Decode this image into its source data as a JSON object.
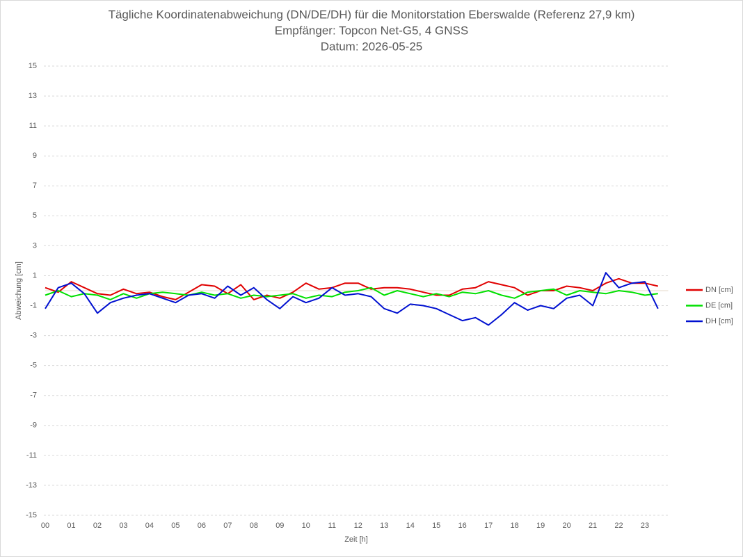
{
  "chart_data": {
    "type": "line",
    "title": "Tägliche Koordinatenabweichung (DN/DE/DH) für die Monitorstation Eberswalde (Referenz 27,9 km)",
    "subtitle": "Empfänger: Topcon Net-G5, 4 GNSS",
    "date": "Datum: 2026-05-25",
    "xlabel": "Zeit [h]",
    "ylabel": "Abweichung [cm]",
    "x": [
      0,
      0.5,
      1,
      1.5,
      2,
      2.5,
      3,
      3.5,
      4,
      4.5,
      5,
      5.5,
      6,
      6.5,
      7,
      7.5,
      8,
      8.5,
      9,
      9.5,
      10,
      10.5,
      11,
      11.5,
      12,
      12.5,
      13,
      13.5,
      14,
      14.5,
      15,
      15.5,
      16,
      16.5,
      17,
      17.5,
      18,
      18.5,
      19,
      19.5,
      20,
      20.5,
      21,
      21.5,
      22,
      22.5,
      23,
      23.5
    ],
    "series": [
      {
        "name": "DN [cm]",
        "color": "#e00000",
        "values": [
          0.2,
          -0.1,
          0.6,
          0.2,
          -0.2,
          -0.3,
          0.1,
          -0.2,
          -0.1,
          -0.4,
          -0.6,
          -0.1,
          0.4,
          0.3,
          -0.2,
          0.4,
          -0.6,
          -0.3,
          -0.5,
          -0.1,
          0.5,
          0.1,
          0.2,
          0.5,
          0.5,
          0.1,
          0.2,
          0.2,
          0.1,
          -0.1,
          -0.3,
          -0.3,
          0.1,
          0.2,
          0.6,
          0.4,
          0.2,
          -0.3,
          0,
          0,
          0.3,
          0.2,
          0,
          0.5,
          0.8,
          0.5,
          0.5,
          0.3
        ]
      },
      {
        "name": "DE [cm]",
        "color": "#00e000",
        "values": [
          -0.3,
          0,
          -0.4,
          -0.2,
          -0.3,
          -0.6,
          -0.2,
          -0.5,
          -0.2,
          -0.1,
          -0.2,
          -0.3,
          -0.1,
          -0.3,
          -0.2,
          -0.5,
          -0.3,
          -0.4,
          -0.3,
          -0.2,
          -0.5,
          -0.3,
          -0.4,
          -0.1,
          0,
          0.2,
          -0.3,
          0,
          -0.2,
          -0.4,
          -0.2,
          -0.4,
          -0.1,
          -0.2,
          0,
          -0.3,
          -0.5,
          -0.1,
          0,
          0.1,
          -0.3,
          0,
          -0.1,
          -0.2,
          0,
          -0.1,
          -0.3,
          -0.2
        ]
      },
      {
        "name": "DH [cm]",
        "color": "#0010d0",
        "values": [
          -1.2,
          0.2,
          0.5,
          -0.2,
          -1.5,
          -0.8,
          -0.5,
          -0.3,
          -0.2,
          -0.5,
          -0.8,
          -0.3,
          -0.2,
          -0.5,
          0.3,
          -0.3,
          0.2,
          -0.6,
          -1.2,
          -0.4,
          -0.8,
          -0.5,
          0.2,
          -0.3,
          -0.2,
          -0.4,
          -1.2,
          -1.5,
          -0.9,
          -1.0,
          -1.2,
          -1.6,
          -2.0,
          -1.8,
          -2.3,
          -1.6,
          -0.8,
          -1.3,
          -1.0,
          -1.2,
          -0.5,
          -0.3,
          -1.0,
          1.2,
          0.2,
          0.5,
          0.6,
          -1.2
        ]
      }
    ],
    "xlim": [
      0,
      24
    ],
    "xticks": [
      {
        "value": 0,
        "label": "00"
      },
      {
        "value": 1,
        "label": "01"
      },
      {
        "value": 2,
        "label": "02"
      },
      {
        "value": 3,
        "label": "03"
      },
      {
        "value": 4,
        "label": "04"
      },
      {
        "value": 5,
        "label": "05"
      },
      {
        "value": 6,
        "label": "06"
      },
      {
        "value": 7,
        "label": "07"
      },
      {
        "value": 8,
        "label": "08"
      },
      {
        "value": 9,
        "label": "09"
      },
      {
        "value": 10,
        "label": "10"
      },
      {
        "value": 11,
        "label": "11"
      },
      {
        "value": 12,
        "label": "12"
      },
      {
        "value": 13,
        "label": "13"
      },
      {
        "value": 14,
        "label": "14"
      },
      {
        "value": 15,
        "label": "15"
      },
      {
        "value": 16,
        "label": "16"
      },
      {
        "value": 17,
        "label": "17"
      },
      {
        "value": 18,
        "label": "18"
      },
      {
        "value": 19,
        "label": "19"
      },
      {
        "value": 20,
        "label": "20"
      },
      {
        "value": 21,
        "label": "21"
      },
      {
        "value": 22,
        "label": "22"
      },
      {
        "value": 23,
        "label": "23"
      }
    ],
    "ylim": [
      -15,
      15
    ],
    "yticks": [
      15,
      13,
      11,
      9,
      7,
      5,
      3,
      1,
      -1,
      -3,
      -5,
      -7,
      -9,
      -11,
      -13,
      -15
    ],
    "grid": true,
    "legend": "right"
  }
}
